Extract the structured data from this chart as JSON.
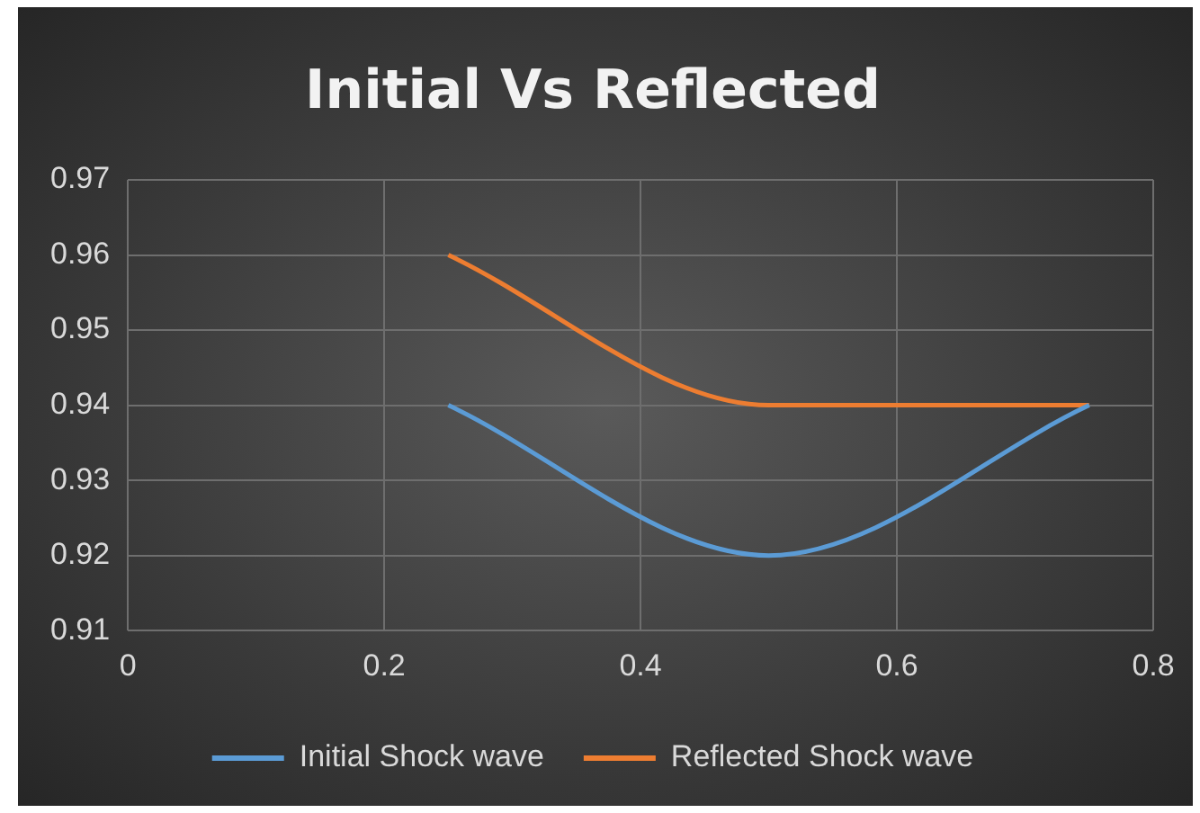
{
  "chart_data": {
    "type": "line",
    "title": "Initial Vs Reflected",
    "x": [
      0.25,
      0.5,
      0.75
    ],
    "series": [
      {
        "name": "Initial Shock wave",
        "color": "#5b9bd5",
        "values": [
          0.94,
          0.92,
          0.94
        ]
      },
      {
        "name": "Reflected Shock wave",
        "color": "#ed7d31",
        "values": [
          0.96,
          0.94,
          0.94
        ]
      }
    ],
    "xlim": [
      0,
      0.8
    ],
    "xticks": [
      0,
      0.2,
      0.4,
      0.6,
      0.8
    ],
    "ylim": [
      0.91,
      0.97
    ],
    "yticks": [
      0.91,
      0.92,
      0.93,
      0.94,
      0.95,
      0.96,
      0.97
    ],
    "grid": true,
    "legend": "bottom",
    "marker": "none",
    "line_style": "solid"
  }
}
